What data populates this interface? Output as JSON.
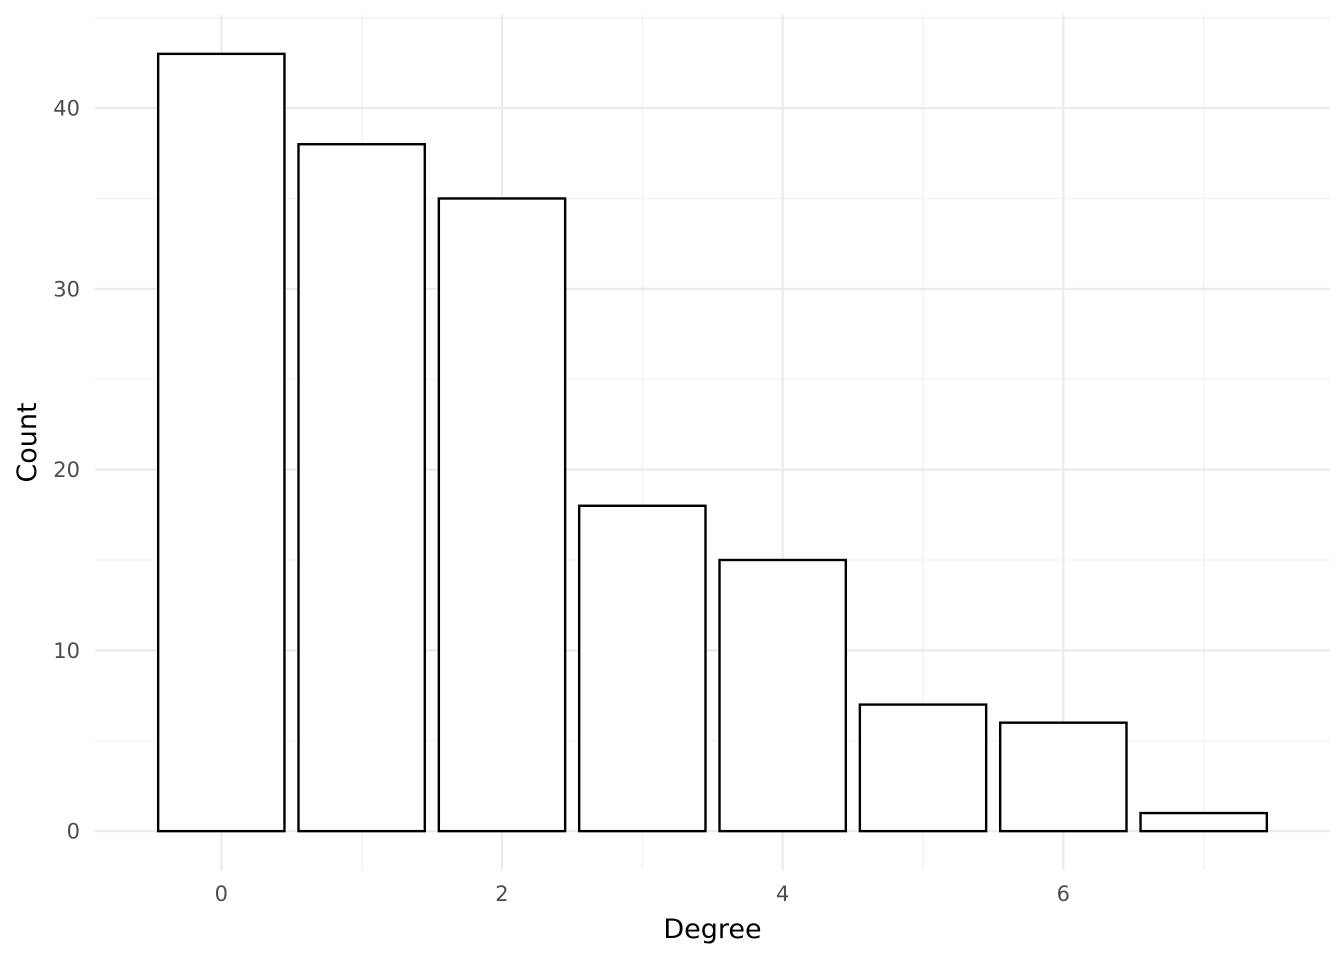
{
  "chart_data": {
    "type": "bar",
    "x": [
      0,
      1,
      2,
      3,
      4,
      5,
      6,
      7
    ],
    "values": [
      43,
      38,
      35,
      18,
      15,
      7,
      6,
      1
    ],
    "title": "",
    "xlabel": "Degree",
    "ylabel": "Count",
    "xlim": [
      -0.9,
      7.9
    ],
    "ylim": [
      -2.15,
      45.15
    ],
    "x_ticks": [
      0,
      2,
      4,
      6
    ],
    "y_ticks": [
      0,
      10,
      20,
      30,
      40
    ],
    "grid": true,
    "legend": "none",
    "bar_fill": "#ffffff",
    "bar_outline": "#000000",
    "grid_color": "#ebebeb",
    "background": "#ffffff"
  }
}
